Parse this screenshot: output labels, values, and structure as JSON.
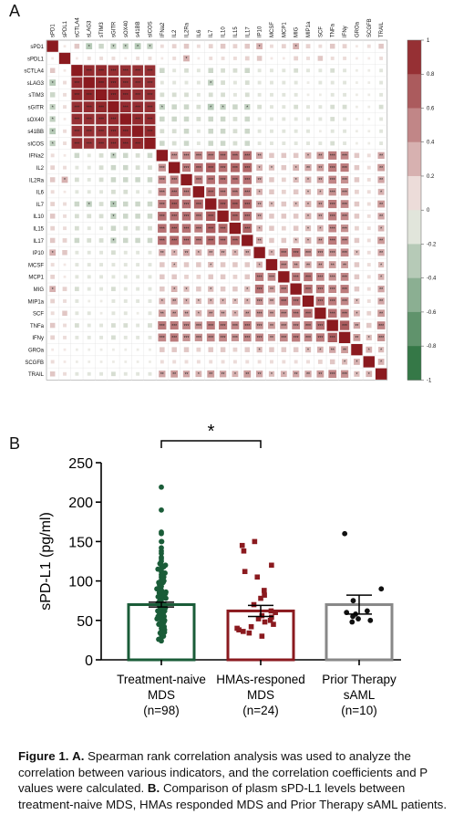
{
  "panel_a_letter": "A",
  "panel_b_letter": "B",
  "chart_data": [
    {
      "type": "heatmap",
      "variables": [
        "sPD1",
        "sPDL1",
        "sCTLA4",
        "sLAG3",
        "sTIM3",
        "sGITR",
        "sOX40",
        "s41BB",
        "sICOS",
        "IFNa2",
        "IL2",
        "IL2Ra",
        "IL6",
        "IL7",
        "IL10",
        "IL15",
        "IL17",
        "IP10",
        "MCSF",
        "MCP1",
        "MIG",
        "MIP1a",
        "SCF",
        "TNFa",
        "IFNy",
        "GROa",
        "SCGFB",
        "TRAIL"
      ],
      "colorbar_ticks": [
        "1",
        "0.8",
        "0.6",
        "0.4",
        "0.2",
        "0",
        "-0.2",
        "-0.4",
        "-0.6",
        "-0.8",
        "-1"
      ],
      "color_range": [
        -1,
        1
      ],
      "colors": {
        "positive": "#8b1a1f",
        "neutral": "#f7f2ee",
        "negative": "#1f6b35"
      },
      "significance_labels": [
        "*",
        "**",
        "***"
      ],
      "values_note": "lower-left estimated correlation coefficients (row i, column j, j<i)",
      "lower_triangle": [
        [],
        [
          0.05
        ],
        [
          0.2,
          0.05
        ],
        [
          -0.3,
          0.1,
          0.92
        ],
        [
          -0.2,
          0.1,
          0.93,
          0.95
        ],
        [
          -0.25,
          0.1,
          0.9,
          0.92,
          0.94
        ],
        [
          -0.25,
          0.05,
          0.9,
          0.9,
          0.92,
          0.92
        ],
        [
          -0.3,
          0.1,
          0.9,
          0.9,
          0.9,
          0.91,
          0.93
        ],
        [
          -0.25,
          0.1,
          0.9,
          0.88,
          0.9,
          0.9,
          0.92,
          0.93
        ],
        [
          0.1,
          0.05,
          -0.2,
          -0.1,
          -0.15,
          -0.25,
          -0.2,
          -0.15,
          -0.2
        ],
        [
          0.15,
          0.1,
          -0.1,
          -0.1,
          -0.15,
          -0.2,
          -0.2,
          -0.15,
          -0.15,
          0.45
        ],
        [
          0.2,
          0.3,
          -0.15,
          -0.1,
          -0.15,
          -0.2,
          -0.2,
          -0.2,
          -0.2,
          0.5,
          0.55
        ],
        [
          0.1,
          0.05,
          -0.1,
          -0.1,
          -0.1,
          -0.15,
          -0.15,
          -0.1,
          -0.1,
          0.5,
          0.6,
          0.55
        ],
        [
          0.15,
          0.1,
          -0.2,
          -0.25,
          -0.15,
          -0.3,
          -0.2,
          -0.2,
          -0.2,
          0.55,
          0.7,
          0.6,
          0.65
        ],
        [
          0.2,
          0.1,
          -0.15,
          -0.15,
          -0.15,
          -0.25,
          -0.2,
          -0.2,
          -0.2,
          0.6,
          0.6,
          0.6,
          0.55,
          0.7
        ],
        [
          0.15,
          0.1,
          -0.15,
          -0.1,
          -0.1,
          -0.2,
          -0.15,
          -0.15,
          -0.15,
          0.6,
          0.65,
          0.6,
          0.55,
          0.7,
          0.65
        ],
        [
          0.2,
          0.15,
          -0.2,
          -0.15,
          -0.15,
          -0.25,
          -0.2,
          -0.2,
          -0.2,
          0.6,
          0.65,
          0.6,
          0.55,
          0.65,
          0.6,
          0.65
        ],
        [
          0.3,
          0.2,
          -0.1,
          -0.1,
          -0.1,
          -0.15,
          -0.1,
          -0.1,
          -0.1,
          0.35,
          0.3,
          0.35,
          0.3,
          0.35,
          0.35,
          0.3,
          0.35
        ],
        [
          0.1,
          0.05,
          -0.1,
          -0.1,
          -0.1,
          -0.1,
          -0.1,
          -0.1,
          -0.1,
          0.2,
          0.25,
          0.2,
          0.2,
          0.25,
          0.2,
          0.2,
          0.2,
          0.3
        ],
        [
          0.15,
          0.05,
          -0.1,
          -0.1,
          -0.1,
          -0.1,
          -0.1,
          -0.1,
          -0.1,
          0.2,
          0.2,
          0.15,
          0.15,
          0.2,
          0.2,
          0.15,
          0.2,
          0.55,
          0.5
        ],
        [
          0.3,
          0.15,
          -0.15,
          -0.1,
          -0.1,
          -0.15,
          -0.1,
          -0.1,
          -0.1,
          0.2,
          0.3,
          0.25,
          0.2,
          0.25,
          0.2,
          0.2,
          0.25,
          0.6,
          0.4,
          0.55
        ],
        [
          0.15,
          0.1,
          -0.1,
          -0.05,
          -0.05,
          -0.1,
          -0.1,
          -0.1,
          -0.1,
          0.3,
          0.35,
          0.3,
          0.25,
          0.3,
          0.3,
          0.25,
          0.3,
          0.45,
          0.35,
          0.6,
          0.6
        ],
        [
          0.1,
          0.2,
          -0.1,
          -0.1,
          -0.05,
          -0.1,
          -0.1,
          -0.05,
          -0.1,
          0.4,
          0.4,
          0.35,
          0.3,
          0.4,
          0.35,
          0.3,
          0.4,
          0.45,
          0.4,
          0.5,
          0.55,
          0.6
        ],
        [
          0.2,
          0.1,
          -0.15,
          -0.1,
          -0.1,
          -0.15,
          -0.15,
          -0.1,
          -0.15,
          0.55,
          0.55,
          0.5,
          0.45,
          0.55,
          0.55,
          0.5,
          0.55,
          0.45,
          0.4,
          0.45,
          0.5,
          0.55,
          0.6
        ],
        [
          0.15,
          0.1,
          -0.1,
          -0.1,
          -0.1,
          -0.15,
          -0.1,
          -0.1,
          -0.1,
          0.5,
          0.55,
          0.45,
          0.45,
          0.5,
          0.5,
          0.45,
          0.5,
          0.5,
          0.4,
          0.5,
          0.55,
          0.5,
          0.55,
          0.7
        ],
        [
          0.05,
          0.05,
          -0.05,
          -0.05,
          -0.05,
          -0.05,
          -0.05,
          -0.05,
          -0.05,
          0.2,
          0.2,
          0.2,
          0.15,
          0.2,
          0.2,
          0.15,
          0.2,
          0.25,
          0.2,
          0.2,
          0.2,
          0.25,
          0.3,
          0.35,
          0.4
        ],
        [
          0.1,
          0.05,
          -0.05,
          -0.05,
          -0.05,
          -0.05,
          -0.05,
          -0.05,
          -0.05,
          0.1,
          0.1,
          0.1,
          0.1,
          0.1,
          0.1,
          0.1,
          0.1,
          0.1,
          0.1,
          0.1,
          0.1,
          0.1,
          0.15,
          0.2,
          0.25,
          0.3
        ],
        [
          0.2,
          0.1,
          -0.1,
          -0.1,
          -0.1,
          -0.15,
          -0.1,
          -0.1,
          -0.1,
          0.35,
          0.4,
          0.35,
          0.3,
          0.4,
          0.35,
          0.3,
          0.4,
          0.35,
          0.25,
          0.3,
          0.35,
          0.35,
          0.4,
          0.5,
          0.45,
          0.25,
          0.3
        ]
      ]
    },
    {
      "type": "bar",
      "ylabel": "sPD-L1 (pg/ml)",
      "ylim": [
        0,
        250
      ],
      "yticks": [
        "0",
        "50",
        "100",
        "150",
        "200",
        "250"
      ],
      "categories": [
        {
          "line1": "Treatment-naive",
          "line2": "MDS",
          "line3": "(n=98)"
        },
        {
          "line1": "HMAs-responed",
          "line2": "MDS",
          "line3": "(n=24)"
        },
        {
          "line1": "Prior Therapy",
          "line2": "sAML",
          "line3": "(n=10)"
        }
      ],
      "means": [
        70,
        62,
        70
      ],
      "sem": [
        3,
        7,
        12
      ],
      "colors": [
        "#1a5c38",
        "#8b1a1f",
        "#888888"
      ],
      "marker_shapes": [
        "circle",
        "square",
        "circle"
      ],
      "points": [
        [
          219,
          190,
          162,
          160,
          150,
          150,
          142,
          138,
          135,
          130,
          128,
          125,
          122,
          120,
          120,
          118,
          115,
          115,
          112,
          110,
          110,
          108,
          105,
          105,
          102,
          100,
          100,
          98,
          98,
          96,
          95,
          95,
          93,
          92,
          90,
          90,
          88,
          88,
          86,
          85,
          85,
          84,
          82,
          82,
          80,
          80,
          80,
          78,
          78,
          76,
          75,
          75,
          74,
          72,
          72,
          70,
          70,
          68,
          68,
          66,
          65,
          65,
          64,
          62,
          62,
          60,
          60,
          58,
          58,
          56,
          55,
          55,
          54,
          52,
          52,
          50,
          50,
          48,
          48,
          46,
          45,
          45,
          44,
          42,
          42,
          40,
          40,
          38,
          38,
          36,
          35,
          35,
          34,
          32,
          30,
          28,
          26,
          24
        ],
        [
          150,
          145,
          138,
          120,
          112,
          105,
          88,
          82,
          78,
          70,
          62,
          60,
          56,
          54,
          52,
          50,
          48,
          45,
          42,
          40,
          38,
          36,
          34,
          30
        ],
        [
          160,
          90,
          75,
          62,
          60,
          58,
          55,
          52,
          50,
          48
        ]
      ],
      "significance": {
        "groups": [
          0,
          1
        ],
        "label": "*"
      }
    }
  ],
  "caption": {
    "fig_label": "Figure 1.",
    "a_label": "A.",
    "a_text": "Spearman rank correlation analysis was used to analyze the correlation between various indicators, and the correlation coefficients and P values were calculated.",
    "b_label": "B.",
    "b_text": "Comparison of plasm sPD-L1 levels between treatment-naive MDS, HMAs responded MDS and Prior Therapy sAML patients."
  }
}
